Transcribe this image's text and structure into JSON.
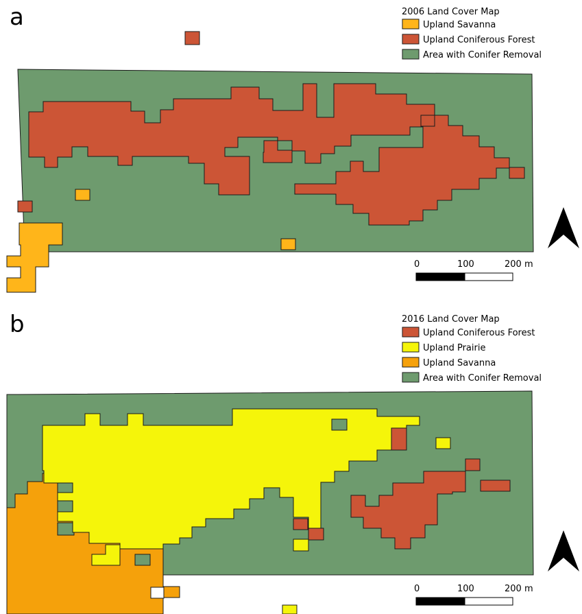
{
  "colors": {
    "savanna": "#FFB51A",
    "savanna_2016": "#F5A10B",
    "forest": "#CC5536",
    "prairie": "#F5F50A",
    "removal": "#6E9B6E"
  },
  "panel_a": {
    "letter": "a",
    "legend_title": "2006 Land Cover Map",
    "legend": [
      {
        "label": "Upland Savanna",
        "color": "#FFB51A"
      },
      {
        "label": "Upland Coniferous Forest",
        "color": "#CC5536"
      },
      {
        "label": "Area with Conifer Removal",
        "color": "#6E9B6E"
      }
    ],
    "scale": {
      "labels": [
        "0",
        "100",
        "200 m"
      ]
    },
    "north_arrow": "north-arrow-icon"
  },
  "panel_b": {
    "letter": "b",
    "legend_title": "2016 Land Cover Map",
    "legend": [
      {
        "label": "Upland Coniferous Forest",
        "color": "#CC5536"
      },
      {
        "label": "Upland Prairie",
        "color": "#F5F50A"
      },
      {
        "label": "Upland Savanna",
        "color": "#F5A10B"
      },
      {
        "label": "Area with Conifer Removal",
        "color": "#6E9B6E"
      }
    ],
    "scale": {
      "labels": [
        "0",
        "100",
        "200 m"
      ]
    },
    "north_arrow": "north-arrow-icon"
  }
}
